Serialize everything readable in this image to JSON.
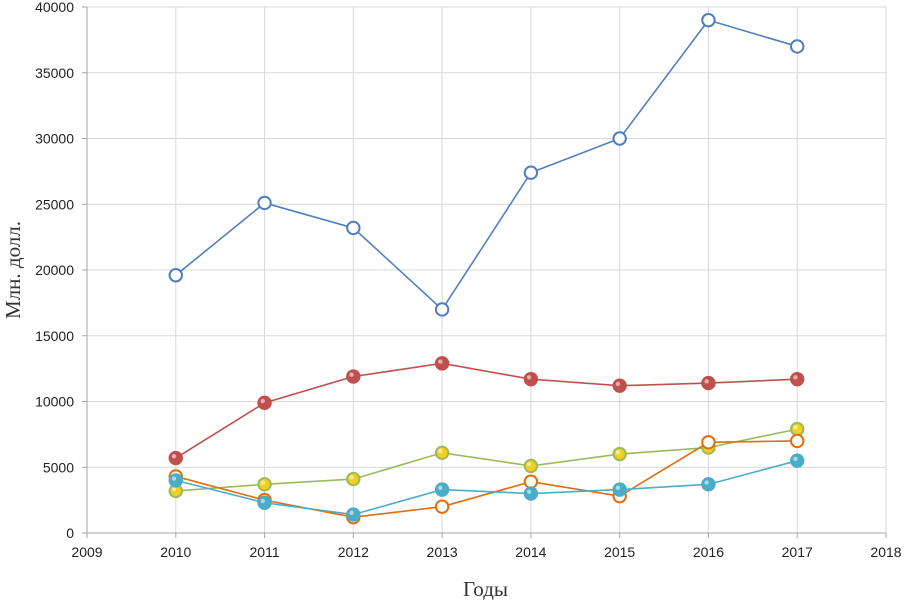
{
  "chart_data": {
    "type": "line",
    "title": "",
    "xlabel": "Годы",
    "ylabel": "Млн. долл.",
    "xlim": [
      2009,
      2018
    ],
    "ylim": [
      0,
      40000
    ],
    "x_ticks": [
      "2009",
      "2010",
      "2011",
      "2012",
      "2013",
      "2014",
      "2015",
      "2016",
      "2017",
      "2018"
    ],
    "y_ticks": [
      "0",
      "5000",
      "10000",
      "15000",
      "20000",
      "25000",
      "30000",
      "35000",
      "40000"
    ],
    "grid": true,
    "legend": "none",
    "x": [
      2010,
      2011,
      2012,
      2013,
      2014,
      2015,
      2016,
      2017
    ],
    "series": [
      {
        "color": "#4f7fbf",
        "marker_fill": "#ffffff",
        "values": [
          19600,
          25100,
          23200,
          17000,
          27400,
          30000,
          39000,
          37000
        ]
      },
      {
        "color": "#c0504d",
        "marker_fill": "#c0504d",
        "values": [
          5700,
          9900,
          11900,
          12900,
          11700,
          11200,
          11400,
          11700
        ]
      },
      {
        "color": "#9bbb59",
        "marker_fill": "#f0d020",
        "values": [
          3200,
          3700,
          4100,
          6100,
          5100,
          6000,
          6500,
          7900
        ]
      },
      {
        "color": "#e46c0a",
        "marker_fill": "#ffffff",
        "values": [
          4300,
          2500,
          1200,
          2000,
          3900,
          2800,
          6900,
          7000
        ]
      },
      {
        "color": "#4bacc6",
        "marker_fill": "#4bacc6",
        "values": [
          4000,
          2300,
          1400,
          3300,
          3000,
          3300,
          3700,
          5500
        ]
      }
    ]
  }
}
